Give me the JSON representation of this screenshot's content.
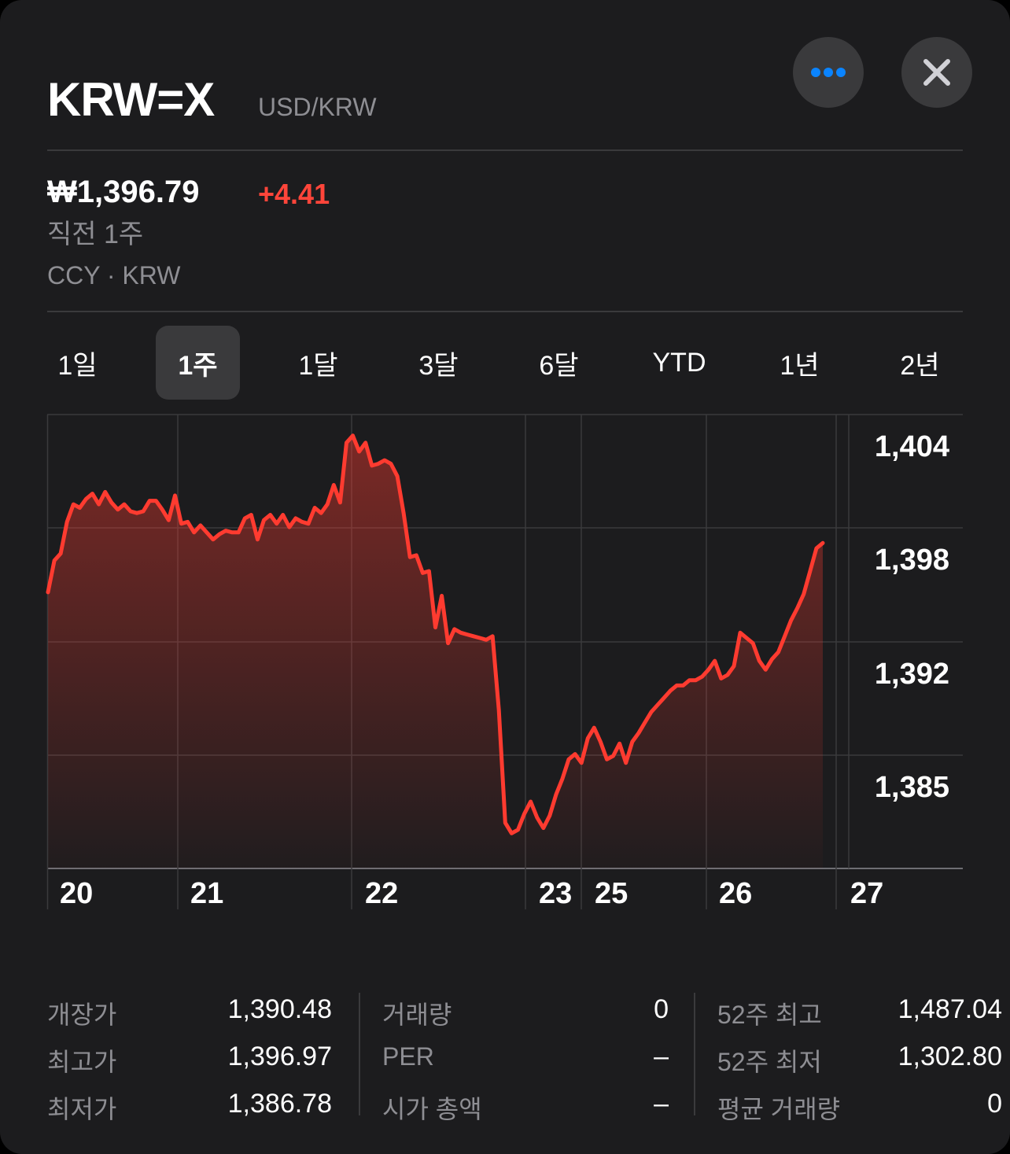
{
  "header": {
    "symbol": "KRW=X",
    "name": "USD/KRW",
    "more_icon": "ellipsis-icon",
    "close_icon": "close-icon",
    "accent_color": "#0a84ff"
  },
  "quote": {
    "price": "₩1,396.79",
    "change": "+4.41",
    "change_color": "#ff453a",
    "period": "직전 1주",
    "exchange": "CCY · KRW"
  },
  "ranges": [
    {
      "label": "1일",
      "active": false
    },
    {
      "label": "1주",
      "active": true
    },
    {
      "label": "1달",
      "active": false
    },
    {
      "label": "3달",
      "active": false
    },
    {
      "label": "6달",
      "active": false
    },
    {
      "label": "YTD",
      "active": false
    },
    {
      "label": "1년",
      "active": false
    },
    {
      "label": "2년",
      "active": false
    }
  ],
  "chart_data": {
    "type": "area",
    "line_color": "#ff3b30",
    "y_ticks": [
      "1,404",
      "1,398",
      "1,392",
      "1,385"
    ],
    "x_labels": [
      "20",
      "21",
      "22",
      "23",
      "25",
      "26",
      "27"
    ],
    "ylim": [
      1380.4,
      1406.2
    ],
    "values": [
      1396.1,
      1397.9,
      1398.3,
      1400.1,
      1401.1,
      1400.9,
      1401.4,
      1401.7,
      1401.1,
      1401.8,
      1401.2,
      1400.8,
      1401.1,
      1400.7,
      1400.6,
      1400.7,
      1401.3,
      1401.3,
      1400.8,
      1400.2,
      1401.6,
      1400.0,
      1400.1,
      1399.5,
      1399.9,
      1399.5,
      1399.1,
      1399.4,
      1399.6,
      1399.5,
      1399.5,
      1400.3,
      1400.5,
      1399.1,
      1400.2,
      1400.5,
      1400.0,
      1400.5,
      1399.8,
      1400.3,
      1400.1,
      1400.0,
      1400.9,
      1400.6,
      1401.1,
      1402.2,
      1401.2,
      1404.6,
      1405.0,
      1404.1,
      1404.6,
      1403.3,
      1403.4,
      1403.6,
      1403.4,
      1402.7,
      1400.6,
      1398.1,
      1398.2,
      1397.2,
      1397.3,
      1394.1,
      1395.9,
      1393.2,
      1394.0,
      1393.8,
      1393.7,
      1393.6,
      1393.5,
      1393.4,
      1393.6,
      1389.4,
      1383.0,
      1382.4,
      1382.6,
      1383.5,
      1384.2,
      1383.3,
      1382.7,
      1383.4,
      1384.6,
      1385.5,
      1386.6,
      1386.9,
      1386.4,
      1387.8,
      1388.4,
      1387.6,
      1386.6,
      1386.8,
      1387.5,
      1386.4,
      1387.6,
      1388.1,
      1388.7,
      1389.3,
      1389.7,
      1390.1,
      1390.5,
      1390.8,
      1390.8,
      1391.1,
      1391.1,
      1391.3,
      1391.7,
      1392.2,
      1391.2,
      1391.4,
      1391.9,
      1393.8,
      1393.5,
      1393.2,
      1392.2,
      1391.7,
      1392.3,
      1392.7,
      1393.6,
      1394.5,
      1395.2,
      1396.0,
      1397.3,
      1398.6,
      1398.9
    ]
  },
  "stats": [
    {
      "label": "개장가",
      "value": "1,390.48"
    },
    {
      "label": "최고가",
      "value": "1,396.97"
    },
    {
      "label": "최저가",
      "value": "1,386.78"
    },
    {
      "label": "거래량",
      "value": "0"
    },
    {
      "label": "PER",
      "value": "–"
    },
    {
      "label": "시가 총액",
      "value": "–"
    },
    {
      "label": "52주 최고",
      "value": "1,487.04"
    },
    {
      "label": "52주 최저",
      "value": "1,302.80"
    },
    {
      "label": "평균 거래량",
      "value": "0"
    }
  ]
}
